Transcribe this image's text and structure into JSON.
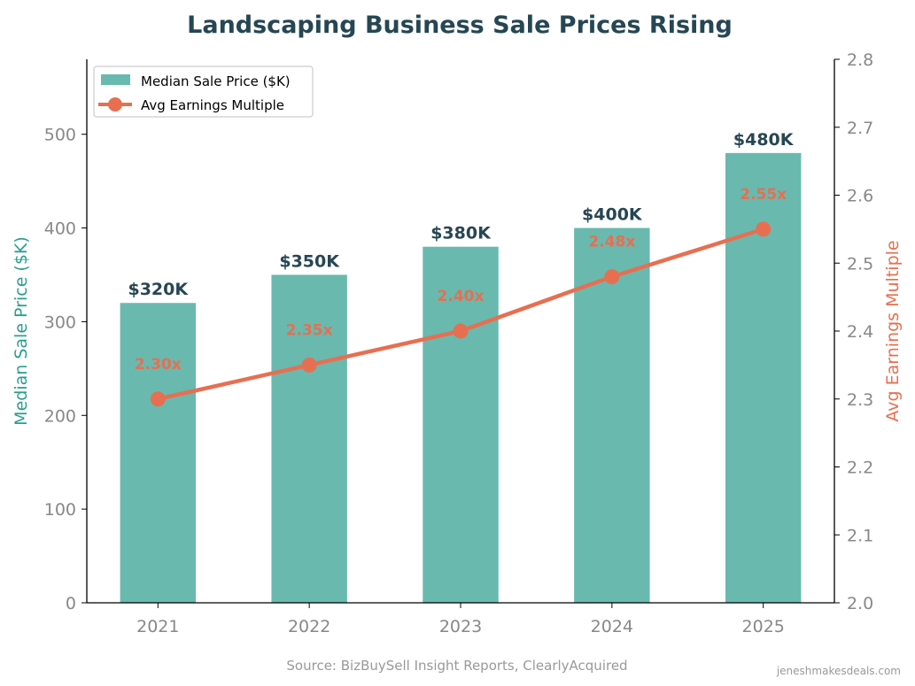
{
  "chart_data": {
    "type": "bar+line",
    "title": "Landscaping Business Sale Prices Rising",
    "categories": [
      "2021",
      "2022",
      "2023",
      "2024",
      "2025"
    ],
    "series": [
      {
        "name": "Median Sale Price ($K)",
        "type": "bar",
        "axis": "left",
        "values": [
          320,
          350,
          380,
          400,
          480
        ],
        "labels": [
          "$320K",
          "$350K",
          "$380K",
          "$400K",
          "$480K"
        ],
        "color": "#69b9af"
      },
      {
        "name": "Avg Earnings Multiple",
        "type": "line",
        "axis": "right",
        "values": [
          2.3,
          2.35,
          2.4,
          2.48,
          2.55
        ],
        "labels": [
          "2.30x",
          "2.35x",
          "2.40x",
          "2.48x",
          "2.55x"
        ],
        "color": "#e76f51"
      }
    ],
    "ylabel_left": "Median Sale Price ($K)",
    "ylabel_right": "Avg Earnings Multiple",
    "ylim_left": [
      0,
      580
    ],
    "ylim_right": [
      2.0,
      2.8
    ],
    "yticks_left": [
      "0",
      "100",
      "200",
      "300",
      "400",
      "500"
    ],
    "yticks_right": [
      "2.0",
      "2.1",
      "2.2",
      "2.3",
      "2.4",
      "2.5",
      "2.6",
      "2.7",
      "2.8"
    ],
    "grid": false,
    "legend_position": "top-left",
    "source": "Source: BizBuySell Insight Reports, ClearlyAcquired",
    "watermark": "jeneshmakesdeals.com",
    "colors": {
      "title": "#264653",
      "left_axis_label": "#2a9d8f",
      "tick": "#888888",
      "bar_label": "#264653"
    }
  }
}
